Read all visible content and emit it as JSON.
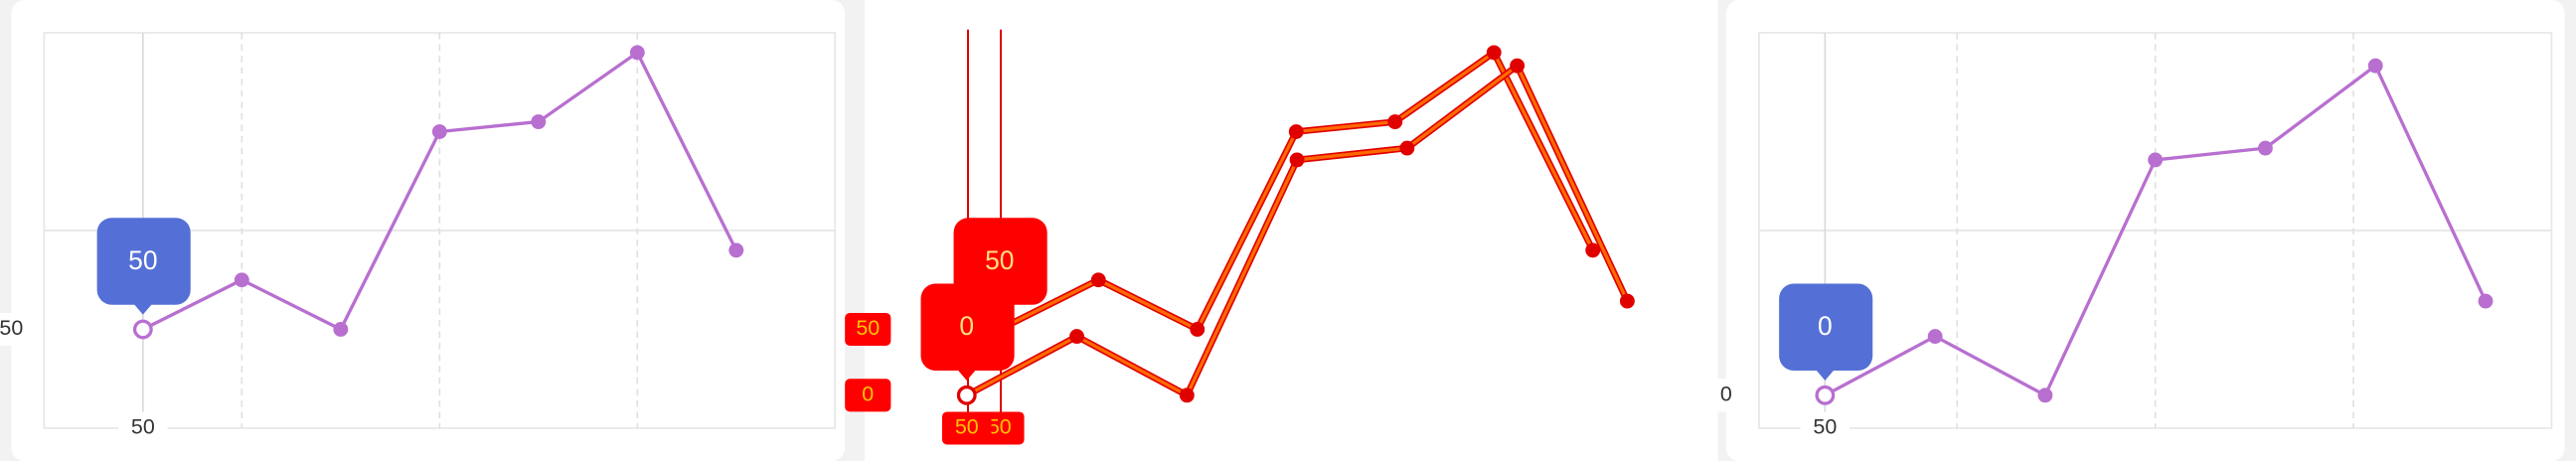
{
  "chart_data": [
    {
      "type": "line",
      "x": [
        50,
        100,
        150,
        200,
        250,
        300,
        350
      ],
      "values": [
        50,
        75,
        50,
        150,
        155,
        190,
        90
      ],
      "color": "#b86fd0",
      "xlim": [
        0,
        400
      ],
      "ylim": [
        0,
        200
      ],
      "xgrid": [
        50,
        100,
        200,
        300
      ],
      "ygrid": [
        100
      ],
      "tooltip": 50,
      "y_pointer": 50,
      "x_pointer": 50
    },
    {
      "type": "line",
      "x": [
        50,
        100,
        150,
        200,
        250,
        300,
        350
      ],
      "values": [
        0,
        25,
        0,
        100,
        105,
        140,
        40
      ],
      "color": "#b86fd0",
      "xlim": [
        20,
        380
      ],
      "ylim": [
        -14,
        154
      ],
      "xgrid": [
        50,
        110,
        200,
        290
      ],
      "ygrid": [
        70
      ],
      "tooltip": 0,
      "y_pointer": 0,
      "x_pointer": 50
    }
  ]
}
